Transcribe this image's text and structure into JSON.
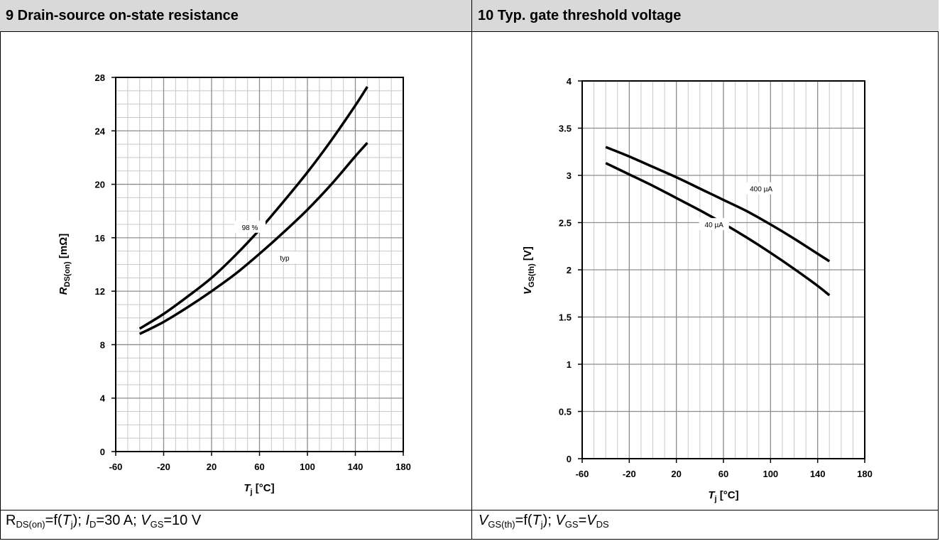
{
  "panels": [
    {
      "header": "9 Drain-source on-state resistance",
      "caption": {
        "p1": "R",
        "s1": "DS(on)",
        "p2": "=f(",
        "p3": "T",
        "s2": "j",
        "p4": "); ",
        "p5": "I",
        "s3": "D",
        "p6": "=30 A; ",
        "p7": "V",
        "s4": "GS",
        "p8": "=10 V"
      }
    },
    {
      "header": "10 Typ. gate threshold voltage",
      "caption": {
        "p1": "V",
        "s1": "GS(th)",
        "p2": "=f(",
        "p3": "T",
        "s2": "j",
        "p4": "); ",
        "p5": "V",
        "s3": "GS",
        "p6": "=",
        "p7": "V",
        "s4": "DS"
      }
    }
  ],
  "chart_data": [
    {
      "type": "line",
      "xlabel": "T_j [°C]",
      "xlabel_parts": {
        "main": "T",
        "sub": "j",
        "unit": " [°C]"
      },
      "ylabel": "R_DS(on) [mΩ]",
      "ylabel_parts": {
        "main": "R",
        "sub": "DS(on)",
        "unit": " [mΩ]"
      },
      "xlim": [
        -60,
        180
      ],
      "ylim": [
        0,
        28
      ],
      "xticks": [
        "-60",
        "-20",
        "20",
        "60",
        "100",
        "140",
        "180"
      ],
      "yticks": [
        "0",
        "4",
        "8",
        "12",
        "16",
        "20",
        "24",
        "28"
      ],
      "grid": true,
      "series": [
        {
          "name": "98 %",
          "x": [
            -40,
            -20,
            0,
            20,
            40,
            60,
            80,
            100,
            120,
            140,
            150
          ],
          "values": [
            9.2,
            10.3,
            11.6,
            13.0,
            14.7,
            16.6,
            18.7,
            20.9,
            23.3,
            25.9,
            27.3
          ]
        },
        {
          "name": "typ",
          "x": [
            -40,
            -20,
            0,
            20,
            40,
            60,
            80,
            100,
            120,
            140,
            150
          ],
          "values": [
            8.8,
            9.7,
            10.8,
            12.0,
            13.3,
            14.8,
            16.4,
            18.1,
            20.0,
            22.1,
            23.1
          ]
        }
      ]
    },
    {
      "type": "line",
      "xlabel": "T_j [°C]",
      "xlabel_parts": {
        "main": "T",
        "sub": "j",
        "unit": " [°C]"
      },
      "ylabel": "V_GS(th) [V]",
      "ylabel_parts": {
        "main": "V",
        "sub": "GS(th)",
        "unit": " [V]"
      },
      "xlim": [
        -60,
        180
      ],
      "ylim": [
        0,
        4
      ],
      "xticks": [
        "-60",
        "-20",
        "20",
        "60",
        "100",
        "140",
        "180"
      ],
      "yticks": [
        "0",
        "0.5",
        "1",
        "1.5",
        "2",
        "2.5",
        "3",
        "3.5",
        "4"
      ],
      "grid": true,
      "series": [
        {
          "name": "400 µA",
          "x": [
            -40,
            -20,
            0,
            20,
            40,
            60,
            80,
            100,
            120,
            140,
            150
          ],
          "values": [
            3.3,
            3.2,
            3.09,
            2.98,
            2.86,
            2.74,
            2.62,
            2.48,
            2.33,
            2.17,
            2.09
          ]
        },
        {
          "name": "40 µA",
          "x": [
            -40,
            -20,
            0,
            20,
            40,
            60,
            80,
            100,
            120,
            140,
            150
          ],
          "values": [
            3.13,
            3.01,
            2.89,
            2.76,
            2.63,
            2.49,
            2.34,
            2.18,
            2.01,
            1.83,
            1.73
          ]
        }
      ]
    }
  ]
}
